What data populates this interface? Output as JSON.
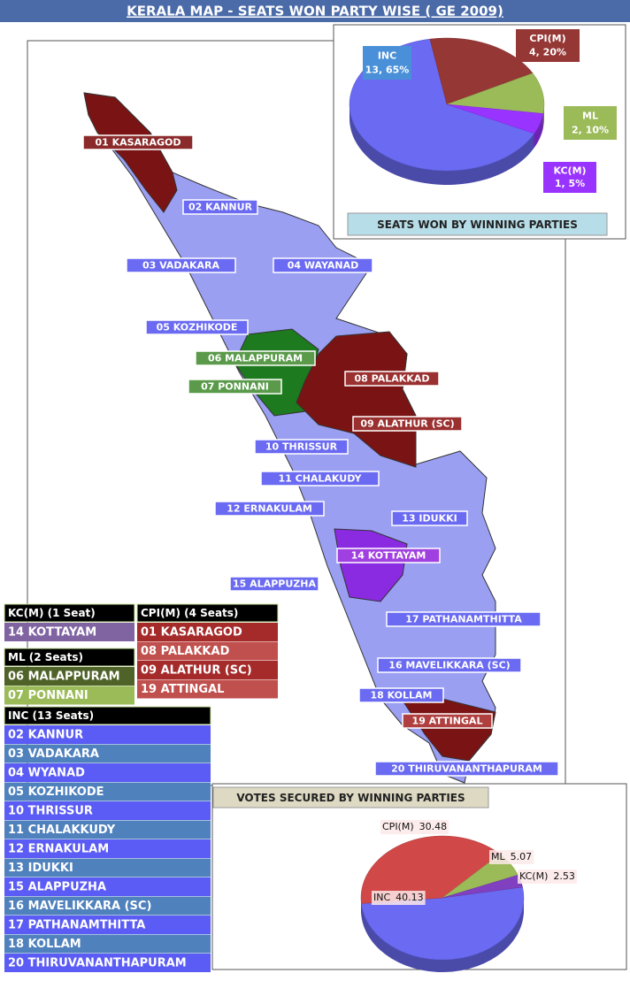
{
  "title": "KERALA MAP -  SEATS WON PARTY WISE ( GE 2009)",
  "map": {
    "labels": [
      {
        "text": "01 KASARAGOD",
        "color": "#8b2a2a"
      },
      {
        "text": "02 KANNUR",
        "color": "#6a6af2"
      },
      {
        "text": "03 VADAKARA",
        "color": "#6a6af2"
      },
      {
        "text": "04 WAYANAD",
        "color": "#6a6af2"
      },
      {
        "text": "05 KOZHIKODE",
        "color": "#6a6af2"
      },
      {
        "text": "06 MALAPPURAM",
        "color": "#5a9a4a"
      },
      {
        "text": "07 PONNANI",
        "color": "#5a9a4a"
      },
      {
        "text": "08 PALAKKAD",
        "color": "#9a3030"
      },
      {
        "text": "09 ALATHUR (SC)",
        "color": "#9a3030"
      },
      {
        "text": "10 THRISSUR",
        "color": "#6a6af2"
      },
      {
        "text": "11 CHALAKUDY",
        "color": "#6a6af2"
      },
      {
        "text": "12 ERNAKULAM",
        "color": "#6a6af2"
      },
      {
        "text": "13 IDUKKI",
        "color": "#6a6af2"
      },
      {
        "text": "14 KOTTAYAM",
        "color": "#a040e0"
      },
      {
        "text": "15 ALAPPUZHA",
        "color": "#6a6af2"
      },
      {
        "text": "16 MAVELIKKARA (SC)",
        "color": "#6a6af2"
      },
      {
        "text": "17 PATHANAMTHITTA",
        "color": "#6a6af2"
      },
      {
        "text": "18 KOLLAM",
        "color": "#6a6af2"
      },
      {
        "text": "19 ATTINGAL",
        "color": "#b04040"
      },
      {
        "text": "20 THIRUVANANTHAPURAM",
        "color": "#6a6af2"
      }
    ]
  },
  "party_tables": [
    {
      "header": "KC(M) (1 Seat)",
      "rows": [
        "14 KOTTAYAM"
      ]
    },
    {
      "header": "CPI(M) (4 Seats)",
      "rows": [
        "01 KASARAGOD",
        "08 PALAKKAD",
        "09 ALATHUR (SC)",
        "19 ATTINGAL"
      ]
    },
    {
      "header": "ML (2 Seats)",
      "rows": [
        "06 MALAPPURAM",
        "07 PONNANI"
      ]
    },
    {
      "header": "INC (13 Seats)",
      "rows": [
        "02 KANNUR",
        "03 VADAKARA",
        "04 WYANAD",
        "05 KOZHIKODE",
        "10 THRISSUR",
        "11 CHALAKKUDY",
        "12 ERNAKULAM",
        "13 IDUKKI",
        "15 ALAPPUZHA",
        "16 MAVELIKKARA (SC)",
        "17 PATHANAMTHITTA",
        "18 KOLLAM",
        "20 THIRUVANANTHAPURAM"
      ]
    }
  ],
  "chart_data": [
    {
      "type": "pie",
      "title": "SEATS WON BY WINNING PARTIES",
      "categories": [
        "INC",
        "CPI(M)",
        "ML",
        "KC(M)"
      ],
      "values": [
        13,
        4,
        2,
        1
      ],
      "value_labels": [
        "13, 65%",
        "4, 20%",
        "2, 10%",
        "1, 5%"
      ],
      "colors": [
        "#6a6af2",
        "#953735",
        "#9bbb59",
        "#9933ff"
      ]
    },
    {
      "type": "pie",
      "title": "VOTES SECURED BY WINNING PARTIES",
      "categories": [
        "INC",
        "CPI(M)",
        "ML",
        "KC(M)"
      ],
      "values": [
        40.13,
        30.48,
        5.07,
        2.53
      ],
      "colors": [
        "#6a6af2",
        "#d04848",
        "#9bbb59",
        "#8040c0"
      ]
    }
  ]
}
